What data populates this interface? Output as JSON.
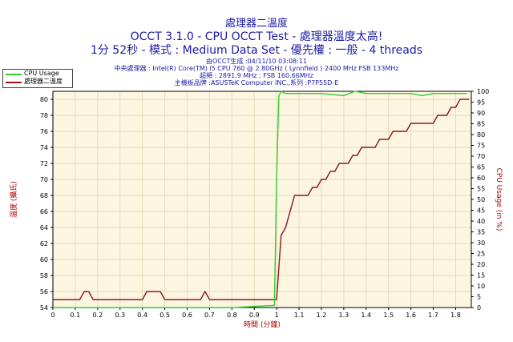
{
  "title_lines": [
    "處理器二溫度",
    "OCCT 3.1.0 - CPU OCCT Test - 處理器溫度太高!",
    "1分 52秒 - 模式 : Medium Data Set - 優先權 : 一般 - 4 threads"
  ],
  "info_lines": [
    "由OCCT生成 :04/11/10 03:08:11",
    "中央處理器 : Intel(R) Core(TM) i5 CPU 760 @ 2.80GHz ( Lynnfield ) 2400 MHz FSB 133MHz",
    "超頻 : 2891.9 MHz ; FSB 160.66MHz",
    "主機板品牌 :ASUSTeK Computer INC.,系列 :P7P55D-E"
  ],
  "colors": {
    "plot_bg": "#fcf5e0",
    "grid": "#e6dcbc",
    "cpu": "#33cc33",
    "temp": "#8b1a1a",
    "axis_text": "#000000",
    "axis_label": "#aa0000"
  },
  "chart_data": {
    "type": "line",
    "xlabel": "時間 (分鐘)",
    "ylabel_left": "溫度 (攝氏)",
    "ylabel_right": "CPU Usage (in %)",
    "xlim": [
      0,
      1.87
    ],
    "ylim_left": [
      54,
      81
    ],
    "ylim_right": [
      0,
      100
    ],
    "x_ticks": [
      "0",
      "0.1",
      "0.2",
      "0.3",
      "0.4",
      "0.5",
      "0.6",
      "0.7",
      "0.8",
      "0.9",
      "1",
      "1.1",
      "1.2",
      "1.3",
      "1.4",
      "1.5",
      "1.6",
      "1.7",
      "1.8"
    ],
    "y_ticks_left": [
      "54",
      "56",
      "58",
      "60",
      "62",
      "64",
      "66",
      "68",
      "70",
      "72",
      "74",
      "76",
      "78",
      "80"
    ],
    "y_ticks_right": [
      "0",
      "5",
      "10",
      "15",
      "20",
      "25",
      "30",
      "35",
      "40",
      "45",
      "50",
      "55",
      "60",
      "65",
      "70",
      "75",
      "80",
      "85",
      "90",
      "95",
      "100"
    ],
    "grid": true,
    "legend_placement": "top-left",
    "series": [
      {
        "name": "CPU Usage",
        "axis": "right",
        "x": [
          0,
          0.1,
          0.2,
          0.4,
          0.6,
          0.8,
          0.99,
          1.0,
          1.01,
          1.02,
          1.04,
          1.08,
          1.15,
          1.2,
          1.3,
          1.35,
          1.4,
          1.45,
          1.5,
          1.55,
          1.6,
          1.65,
          1.7,
          1.75,
          1.8,
          1.85
        ],
        "values": [
          0,
          0,
          0,
          0,
          0,
          0,
          1,
          60,
          98,
          100,
          99,
          99,
          99,
          99,
          98,
          100,
          99,
          99,
          99,
          99,
          99,
          98,
          99,
          99,
          99,
          99
        ]
      },
      {
        "name": "處理器二溫度",
        "axis": "left",
        "x": [
          0,
          0.02,
          0.04,
          0.06,
          0.08,
          0.1,
          0.12,
          0.14,
          0.16,
          0.18,
          0.2,
          0.22,
          0.24,
          0.26,
          0.28,
          0.3,
          0.32,
          0.34,
          0.36,
          0.38,
          0.4,
          0.42,
          0.44,
          0.46,
          0.48,
          0.5,
          0.52,
          0.54,
          0.56,
          0.58,
          0.6,
          0.62,
          0.64,
          0.66,
          0.68,
          0.7,
          0.72,
          0.74,
          0.76,
          0.78,
          0.8,
          0.82,
          0.84,
          0.86,
          0.88,
          0.9,
          0.92,
          0.94,
          0.96,
          0.98,
          1.0,
          1.02,
          1.04,
          1.06,
          1.08,
          1.1,
          1.12,
          1.14,
          1.16,
          1.18,
          1.2,
          1.22,
          1.24,
          1.26,
          1.28,
          1.3,
          1.32,
          1.34,
          1.36,
          1.38,
          1.4,
          1.42,
          1.44,
          1.46,
          1.48,
          1.5,
          1.52,
          1.54,
          1.56,
          1.58,
          1.6,
          1.62,
          1.64,
          1.66,
          1.68,
          1.7,
          1.72,
          1.74,
          1.76,
          1.78,
          1.8,
          1.82,
          1.84,
          1.86
        ],
        "values": [
          55,
          55,
          55,
          55,
          55,
          55,
          55,
          56,
          56,
          55,
          55,
          55,
          55,
          55,
          55,
          55,
          55,
          55,
          55,
          55,
          55,
          56,
          56,
          56,
          56,
          55,
          55,
          55,
          55,
          55,
          55,
          55,
          55,
          55,
          56,
          55,
          55,
          55,
          55,
          55,
          55,
          55,
          55,
          55,
          55,
          55,
          55,
          55,
          55,
          55,
          55,
          63,
          64,
          66,
          68,
          68,
          68,
          68,
          69,
          69,
          70,
          70,
          71,
          71,
          72,
          72,
          72,
          73,
          73,
          74,
          74,
          74,
          74,
          75,
          75,
          75,
          76,
          76,
          76,
          76,
          77,
          77,
          77,
          77,
          77,
          77,
          78,
          78,
          78,
          79,
          79,
          80,
          80,
          80
        ]
      }
    ]
  }
}
